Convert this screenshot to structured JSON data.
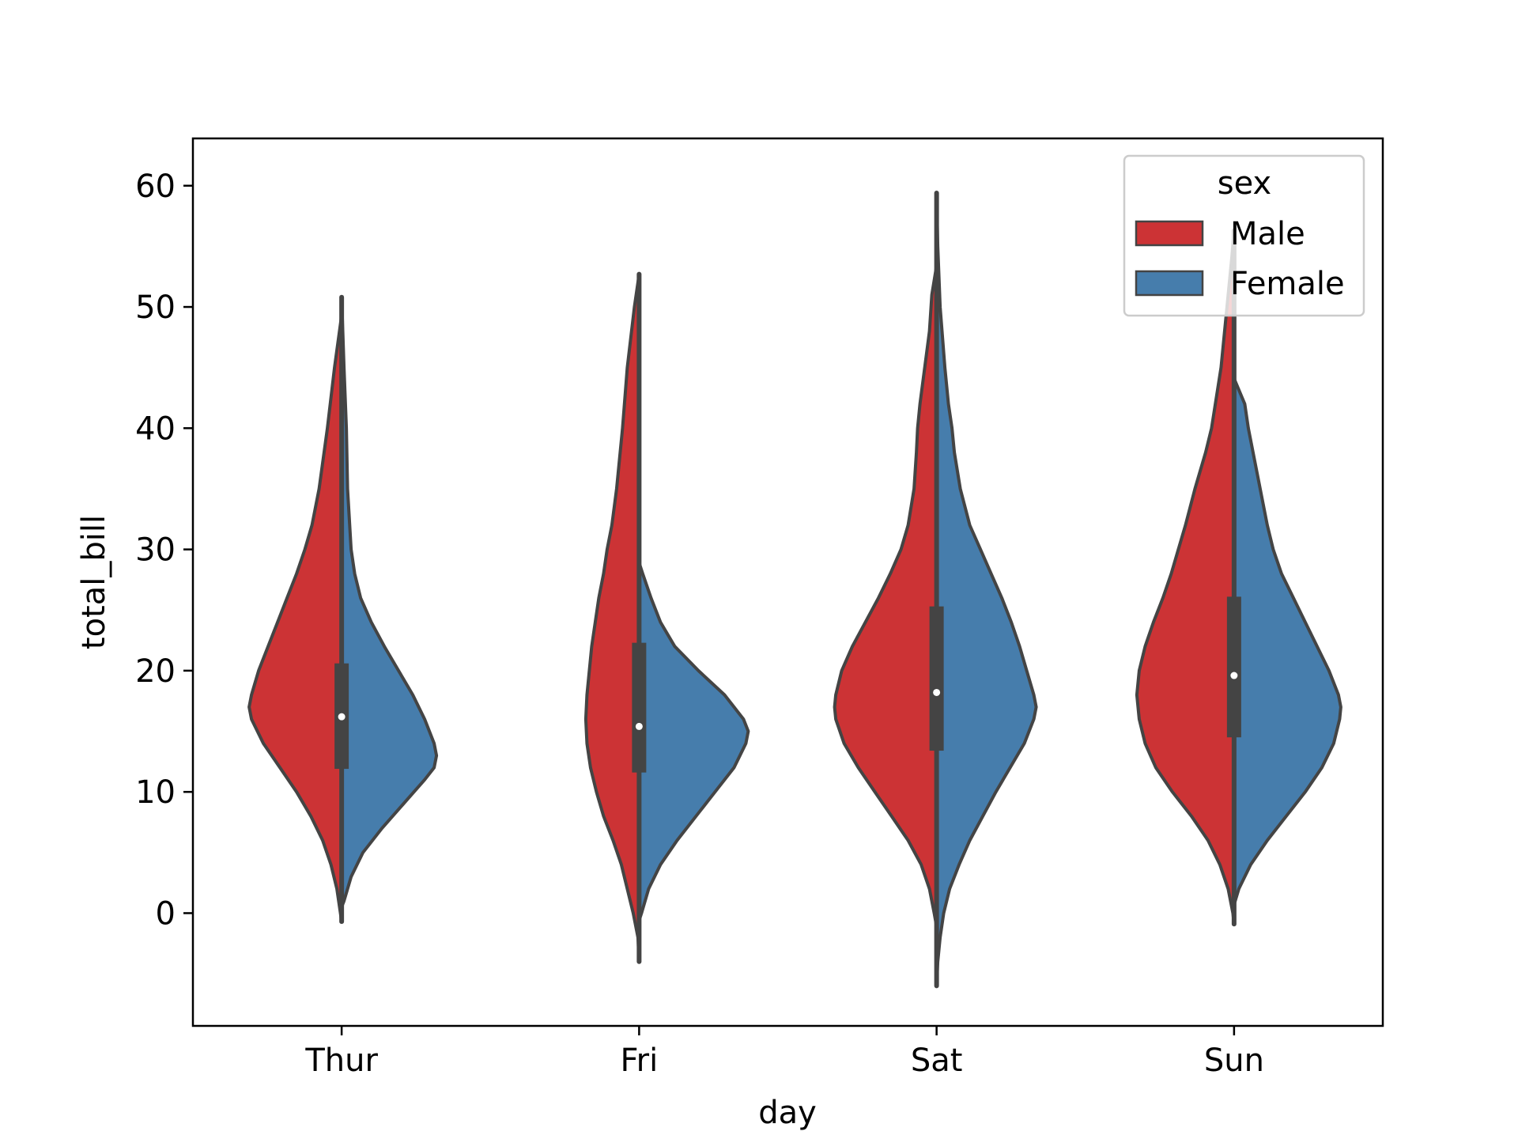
{
  "chart_data": {
    "type": "violin",
    "split": true,
    "title": "",
    "xlabel": "day",
    "ylabel": "total_bill",
    "categories": [
      "Thur",
      "Fri",
      "Sat",
      "Sun"
    ],
    "ylim": [
      -9.3,
      63.9
    ],
    "yticks": [
      0,
      10,
      20,
      30,
      40,
      50,
      60
    ],
    "grid": false,
    "legend": {
      "title": "sex",
      "placement": "top-right",
      "entries": [
        "Male",
        "Female"
      ]
    },
    "colors": {
      "Male": "#cc3335",
      "Female": "#467dac",
      "outline": "#444444"
    },
    "series": [
      {
        "name": "Male",
        "violins": [
          {
            "category": "Thur",
            "min": -0.7,
            "max": 49.3,
            "profile": [
              [
                -0.7,
                0
              ],
              [
                0,
                0.01
              ],
              [
                2,
                0.04
              ],
              [
                4,
                0.09
              ],
              [
                6,
                0.16
              ],
              [
                8,
                0.26
              ],
              [
                10,
                0.38
              ],
              [
                12,
                0.52
              ],
              [
                14,
                0.66
              ],
              [
                16,
                0.76
              ],
              [
                17,
                0.78
              ],
              [
                18,
                0.76
              ],
              [
                20,
                0.7
              ],
              [
                22,
                0.62
              ],
              [
                24,
                0.54
              ],
              [
                26,
                0.46
              ],
              [
                28,
                0.38
              ],
              [
                30,
                0.31
              ],
              [
                32,
                0.25
              ],
              [
                35,
                0.19
              ],
              [
                40,
                0.12
              ],
              [
                45,
                0.06
              ],
              [
                49.3,
                0
              ]
            ]
          },
          {
            "category": "Fri",
            "min": -4.0,
            "max": 52.7,
            "profile": [
              [
                -4,
                0
              ],
              [
                -2,
                0.01
              ],
              [
                0,
                0.05
              ],
              [
                2,
                0.1
              ],
              [
                4,
                0.15
              ],
              [
                6,
                0.22
              ],
              [
                8,
                0.3
              ],
              [
                10,
                0.36
              ],
              [
                12,
                0.41
              ],
              [
                14,
                0.44
              ],
              [
                16,
                0.45
              ],
              [
                18,
                0.44
              ],
              [
                20,
                0.42
              ],
              [
                22,
                0.4
              ],
              [
                24,
                0.37
              ],
              [
                26,
                0.34
              ],
              [
                28,
                0.3
              ],
              [
                30,
                0.27
              ],
              [
                32,
                0.23
              ],
              [
                35,
                0.19
              ],
              [
                40,
                0.14
              ],
              [
                45,
                0.1
              ],
              [
                50,
                0.04
              ],
              [
                52.7,
                0
              ]
            ]
          },
          {
            "category": "Sat",
            "min": -1.1,
            "max": 53.4,
            "profile": [
              [
                -1.1,
                0
              ],
              [
                0,
                0.02
              ],
              [
                2,
                0.06
              ],
              [
                4,
                0.13
              ],
              [
                6,
                0.24
              ],
              [
                8,
                0.38
              ],
              [
                10,
                0.52
              ],
              [
                12,
                0.66
              ],
              [
                14,
                0.78
              ],
              [
                16,
                0.85
              ],
              [
                17,
                0.86
              ],
              [
                18,
                0.85
              ],
              [
                20,
                0.8
              ],
              [
                22,
                0.71
              ],
              [
                24,
                0.6
              ],
              [
                26,
                0.49
              ],
              [
                28,
                0.39
              ],
              [
                30,
                0.3
              ],
              [
                32,
                0.24
              ],
              [
                35,
                0.19
              ],
              [
                38,
                0.17
              ],
              [
                40,
                0.16
              ],
              [
                42,
                0.14
              ],
              [
                45,
                0.1
              ],
              [
                48,
                0.06
              ],
              [
                51,
                0.04
              ],
              [
                53.4,
                0
              ]
            ]
          },
          {
            "category": "Sun",
            "min": -0.9,
            "max": 56.3,
            "profile": [
              [
                -0.9,
                0
              ],
              [
                0,
                0.01
              ],
              [
                2,
                0.05
              ],
              [
                4,
                0.12
              ],
              [
                6,
                0.22
              ],
              [
                8,
                0.36
              ],
              [
                10,
                0.52
              ],
              [
                12,
                0.66
              ],
              [
                14,
                0.75
              ],
              [
                16,
                0.8
              ],
              [
                18,
                0.82
              ],
              [
                20,
                0.8
              ],
              [
                22,
                0.75
              ],
              [
                24,
                0.68
              ],
              [
                26,
                0.6
              ],
              [
                28,
                0.53
              ],
              [
                30,
                0.47
              ],
              [
                32,
                0.41
              ],
              [
                35,
                0.33
              ],
              [
                38,
                0.24
              ],
              [
                40,
                0.19
              ],
              [
                45,
                0.11
              ],
              [
                50,
                0.06
              ],
              [
                54,
                0.02
              ],
              [
                56.3,
                0
              ]
            ]
          }
        ]
      },
      {
        "name": "Female",
        "violins": [
          {
            "category": "Thur",
            "min": 0.5,
            "max": 50.8,
            "profile": [
              [
                0.5,
                0
              ],
              [
                1,
                0.02
              ],
              [
                3,
                0.08
              ],
              [
                5,
                0.18
              ],
              [
                7,
                0.34
              ],
              [
                9,
                0.52
              ],
              [
                11,
                0.7
              ],
              [
                12,
                0.78
              ],
              [
                13,
                0.8
              ],
              [
                14,
                0.78
              ],
              [
                16,
                0.7
              ],
              [
                18,
                0.6
              ],
              [
                20,
                0.48
              ],
              [
                22,
                0.36
              ],
              [
                24,
                0.25
              ],
              [
                26,
                0.16
              ],
              [
                28,
                0.11
              ],
              [
                30,
                0.08
              ],
              [
                35,
                0.05
              ],
              [
                40,
                0.04
              ],
              [
                45,
                0.02
              ],
              [
                50.8,
                0
              ]
            ]
          },
          {
            "category": "Fri",
            "min": -0.6,
            "max": 28.9,
            "profile": [
              [
                -0.6,
                0
              ],
              [
                0,
                0.02
              ],
              [
                2,
                0.08
              ],
              [
                4,
                0.18
              ],
              [
                6,
                0.32
              ],
              [
                8,
                0.48
              ],
              [
                10,
                0.64
              ],
              [
                12,
                0.8
              ],
              [
                14,
                0.9
              ],
              [
                15,
                0.92
              ],
              [
                16,
                0.88
              ],
              [
                18,
                0.72
              ],
              [
                20,
                0.5
              ],
              [
                22,
                0.3
              ],
              [
                24,
                0.18
              ],
              [
                26,
                0.1
              ],
              [
                28,
                0.03
              ],
              [
                28.9,
                0
              ]
            ]
          },
          {
            "category": "Sat",
            "min": -6.0,
            "max": 59.4,
            "profile": [
              [
                -6,
                0
              ],
              [
                -4,
                0.01
              ],
              [
                -2,
                0.03
              ],
              [
                0,
                0.06
              ],
              [
                2,
                0.11
              ],
              [
                4,
                0.19
              ],
              [
                6,
                0.28
              ],
              [
                8,
                0.39
              ],
              [
                10,
                0.5
              ],
              [
                12,
                0.62
              ],
              [
                14,
                0.74
              ],
              [
                16,
                0.82
              ],
              [
                17,
                0.84
              ],
              [
                18,
                0.82
              ],
              [
                20,
                0.76
              ],
              [
                22,
                0.7
              ],
              [
                24,
                0.63
              ],
              [
                26,
                0.55
              ],
              [
                28,
                0.46
              ],
              [
                30,
                0.37
              ],
              [
                32,
                0.28
              ],
              [
                35,
                0.2
              ],
              [
                38,
                0.15
              ],
              [
                40,
                0.13
              ],
              [
                42,
                0.1
              ],
              [
                45,
                0.07
              ],
              [
                50,
                0.03
              ],
              [
                55,
                0.01
              ],
              [
                59.4,
                0
              ]
            ]
          },
          {
            "category": "Sun",
            "min": 0.7,
            "max": 44.1,
            "profile": [
              [
                0.7,
                0
              ],
              [
                2,
                0.04
              ],
              [
                4,
                0.14
              ],
              [
                6,
                0.28
              ],
              [
                8,
                0.44
              ],
              [
                10,
                0.6
              ],
              [
                12,
                0.74
              ],
              [
                14,
                0.84
              ],
              [
                16,
                0.89
              ],
              [
                17,
                0.9
              ],
              [
                18,
                0.88
              ],
              [
                20,
                0.8
              ],
              [
                22,
                0.7
              ],
              [
                24,
                0.6
              ],
              [
                26,
                0.5
              ],
              [
                28,
                0.4
              ],
              [
                30,
                0.33
              ],
              [
                32,
                0.28
              ],
              [
                35,
                0.22
              ],
              [
                38,
                0.16
              ],
              [
                40,
                0.12
              ],
              [
                42,
                0.09
              ],
              [
                44.1,
                0
              ]
            ]
          }
        ]
      }
    ],
    "box": [
      {
        "category": "Thur",
        "q1": 11.9,
        "median": 16.2,
        "q3": 20.6
      },
      {
        "category": "Fri",
        "q1": 11.6,
        "median": 15.4,
        "q3": 22.3
      },
      {
        "category": "Sat",
        "q1": 13.4,
        "median": 18.2,
        "q3": 25.3
      },
      {
        "category": "Sun",
        "q1": 14.5,
        "median": 19.6,
        "q3": 26.1
      }
    ]
  }
}
